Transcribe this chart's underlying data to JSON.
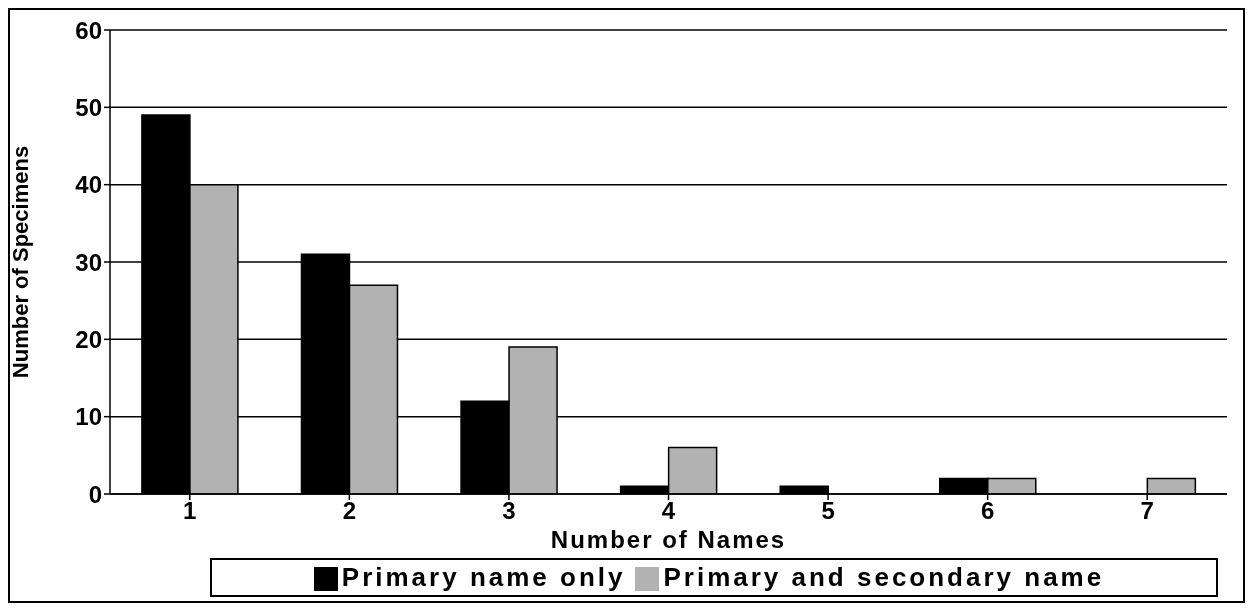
{
  "chart_data": {
    "type": "bar",
    "xlabel": "Number of Names",
    "ylabel": "Number of Specimens",
    "categories": [
      "1",
      "2",
      "3",
      "4",
      "5",
      "6",
      "7"
    ],
    "series": [
      {
        "name": "Primary name only",
        "color": "#000000",
        "values": [
          49,
          31,
          12,
          1,
          1,
          2,
          0
        ]
      },
      {
        "name": "Primary and secondary name",
        "color": "#b2b2b2",
        "values": [
          40,
          27,
          19,
          6,
          0,
          2,
          2
        ]
      }
    ],
    "ylim": [
      0,
      60
    ],
    "yticks": [
      0,
      10,
      20,
      30,
      40,
      50,
      60
    ],
    "grid": "y",
    "legend": "bottom"
  }
}
